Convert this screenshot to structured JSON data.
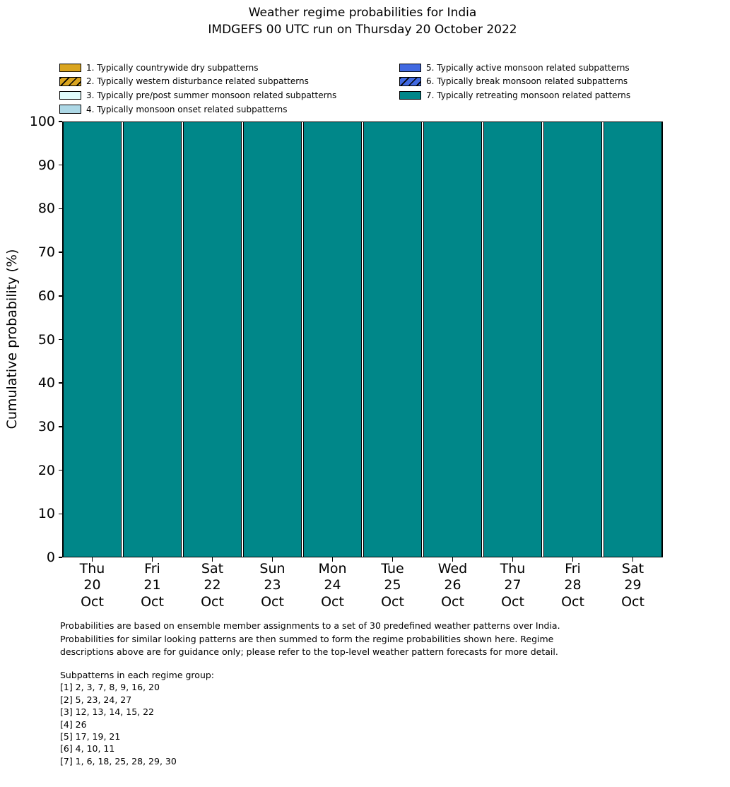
{
  "title": {
    "line1": "Weather regime probabilities for India",
    "line2": "IMDGEFS 00 UTC run on Thursday 20 October 2022"
  },
  "chart_data": {
    "type": "bar",
    "stacked": true,
    "title": "Weather regime probabilities for India",
    "subtitle": "IMDGEFS 00 UTC run on Thursday 20 October 2022",
    "ylabel": "Cumulative probability (%)",
    "ylim": [
      0,
      100
    ],
    "yticks": [
      0,
      10,
      20,
      30,
      40,
      50,
      60,
      70,
      80,
      90,
      100
    ],
    "grid": false,
    "legend_position": "above plot, two columns",
    "bar_edge_color": "#000000",
    "categories": [
      "Thu 20 Oct",
      "Fri 21 Oct",
      "Sat 22 Oct",
      "Sun 23 Oct",
      "Mon 24 Oct",
      "Tue 25 Oct",
      "Wed 26 Oct",
      "Thu 27 Oct",
      "Fri 28 Oct",
      "Sat 29 Oct"
    ],
    "xtick_lines": [
      [
        "Thu",
        "20",
        "Oct"
      ],
      [
        "Fri",
        "21",
        "Oct"
      ],
      [
        "Sat",
        "22",
        "Oct"
      ],
      [
        "Sun",
        "23",
        "Oct"
      ],
      [
        "Mon",
        "24",
        "Oct"
      ],
      [
        "Tue",
        "25",
        "Oct"
      ],
      [
        "Wed",
        "26",
        "Oct"
      ],
      [
        "Thu",
        "27",
        "Oct"
      ],
      [
        "Fri",
        "28",
        "Oct"
      ],
      [
        "Sat",
        "29",
        "Oct"
      ]
    ],
    "series": [
      {
        "name": "1. Typically countrywide dry subpatterns",
        "color": "#DAA520",
        "hatch": "none",
        "values": [
          0,
          0,
          0,
          0,
          0,
          0,
          0,
          0,
          0,
          0
        ]
      },
      {
        "name": "2. Typically western disturbance related subpatterns",
        "color": "#DAA520",
        "hatch": "diagonal",
        "values": [
          0,
          0,
          0,
          0,
          0,
          0,
          0,
          0,
          0,
          0
        ]
      },
      {
        "name": "3. Typically pre/post summer monsoon related subpatterns",
        "color": "#E0FBFB",
        "hatch": "none",
        "values": [
          0,
          0,
          0,
          0,
          0,
          0,
          0,
          0,
          0,
          0
        ]
      },
      {
        "name": "4. Typically monsoon onset related subpatterns",
        "color": "#ADD8E6",
        "hatch": "none",
        "values": [
          0,
          0,
          0,
          0,
          0,
          0,
          0,
          0,
          0,
          0
        ]
      },
      {
        "name": "5. Typically active monsoon related subpatterns",
        "color": "#4169E1",
        "hatch": "none",
        "values": [
          0,
          0,
          0,
          0,
          0,
          0,
          0,
          0,
          0,
          0
        ]
      },
      {
        "name": "6. Typically break monsoon related subpatterns",
        "color": "#4169E1",
        "hatch": "diagonal",
        "values": [
          0,
          0,
          0,
          0,
          0,
          0,
          0,
          0,
          0,
          0
        ]
      },
      {
        "name": "7. Typically retreating monsoon related patterns",
        "color": "#008789",
        "hatch": "none",
        "values": [
          100,
          100,
          100,
          100,
          100,
          100,
          100,
          100,
          100,
          100
        ]
      }
    ]
  },
  "footer": {
    "lines": [
      "Probabilities are based on ensemble member assignments to a set of 30 predefined weather patterns over India.",
      "Probabilities for similar looking patterns are then summed to form the regime probabilities shown here. Regime",
      "descriptions above are for guidance only; please refer to the top-level weather pattern forecasts for more detail."
    ]
  },
  "subpatterns": {
    "heading": "Subpatterns in each regime group:",
    "lines": [
      "[1] 2, 3, 7, 8, 9, 16, 20",
      "[2] 5, 23, 24, 27",
      "[3] 12, 13, 14, 15, 22",
      "[4] 26",
      "[5] 17, 19, 21",
      "[6] 4, 10, 11",
      "[7] 1, 6, 18, 25, 28, 29, 30"
    ]
  }
}
